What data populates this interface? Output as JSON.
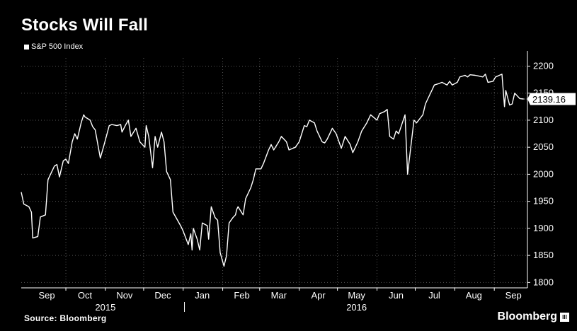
{
  "header": {
    "title": "Stocks Will Fall"
  },
  "footer": {
    "source": "Source: Bloomberg",
    "brand": "Bloomberg",
    "brand_mark": "III"
  },
  "chart_data": {
    "type": "line",
    "title": "Stocks Will Fall",
    "legend": {
      "placement": "top-left",
      "entries": [
        "S&P 500 Index"
      ]
    },
    "series": [
      {
        "name": "S&P 500 Index",
        "color": "#ffffff",
        "x": [
          "2015-08-26",
          "2015-08-28",
          "2015-09-01",
          "2015-09-03",
          "2015-09-04",
          "2015-09-08",
          "2015-09-10",
          "2015-09-14",
          "2015-09-16",
          "2015-09-17",
          "2015-09-21",
          "2015-09-23",
          "2015-09-25",
          "2015-09-28",
          "2015-09-30",
          "2015-10-02",
          "2015-10-05",
          "2015-10-07",
          "2015-10-09",
          "2015-10-12",
          "2015-10-14",
          "2015-10-15",
          "2015-10-19",
          "2015-10-21",
          "2015-10-23",
          "2015-10-27",
          "2015-10-30",
          "2015-11-03",
          "2015-11-05",
          "2015-11-09",
          "2015-11-12",
          "2015-11-13",
          "2015-11-16",
          "2015-11-18",
          "2015-11-20",
          "2015-11-24",
          "2015-11-27",
          "2015-12-01",
          "2015-12-02",
          "2015-12-04",
          "2015-12-07",
          "2015-12-09",
          "2015-12-11",
          "2015-12-14",
          "2015-12-16",
          "2015-12-18",
          "2015-12-21",
          "2015-12-23",
          "2015-12-29",
          "2015-12-31",
          "2016-01-04",
          "2016-01-06",
          "2016-01-07",
          "2016-01-08",
          "2016-01-11",
          "2016-01-13",
          "2016-01-15",
          "2016-01-19",
          "2016-01-20",
          "2016-01-22",
          "2016-01-25",
          "2016-01-27",
          "2016-01-29",
          "2016-02-01",
          "2016-02-03",
          "2016-02-05",
          "2016-02-08",
          "2016-02-10",
          "2016-02-11",
          "2016-02-12",
          "2016-02-16",
          "2016-02-18",
          "2016-02-22",
          "2016-02-24",
          "2016-02-26",
          "2016-03-01",
          "2016-03-03",
          "2016-03-07",
          "2016-03-09",
          "2016-03-11",
          "2016-03-15",
          "2016-03-17",
          "2016-03-21",
          "2016-03-23",
          "2016-03-28",
          "2016-03-31",
          "2016-04-04",
          "2016-04-06",
          "2016-04-08",
          "2016-04-12",
          "2016-04-14",
          "2016-04-18",
          "2016-04-20",
          "2016-04-22",
          "2016-04-26",
          "2016-04-29",
          "2016-05-03",
          "2016-05-06",
          "2016-05-10",
          "2016-05-12",
          "2016-05-16",
          "2016-05-19",
          "2016-05-23",
          "2016-05-26",
          "2016-05-31",
          "2016-06-02",
          "2016-06-06",
          "2016-06-08",
          "2016-06-10",
          "2016-06-13",
          "2016-06-15",
          "2016-06-17",
          "2016-06-22",
          "2016-06-24",
          "2016-06-27",
          "2016-06-29",
          "2016-07-01",
          "2016-07-06",
          "2016-07-08",
          "2016-07-11",
          "2016-07-13",
          "2016-07-15",
          "2016-07-19",
          "2016-07-21",
          "2016-07-25",
          "2016-07-27",
          "2016-07-29",
          "2016-08-02",
          "2016-08-04",
          "2016-08-08",
          "2016-08-10",
          "2016-08-12",
          "2016-08-16",
          "2016-08-18",
          "2016-08-22",
          "2016-08-24",
          "2016-08-26",
          "2016-08-30",
          "2016-09-01",
          "2016-09-06",
          "2016-09-08",
          "2016-09-09",
          "2016-09-12",
          "2016-09-14",
          "2016-09-16",
          "2016-09-20",
          "2016-09-23"
        ],
        "values": [
          1967,
          1945,
          1940,
          1930,
          1882,
          1885,
          1921,
          1925,
          1990,
          1995,
          2015,
          2018,
          1995,
          2025,
          2028,
          2020,
          2060,
          2075,
          2065,
          2095,
          2110,
          2106,
          2100,
          2088,
          2082,
          2030,
          2055,
          2090,
          2092,
          2090,
          2092,
          2078,
          2092,
          2100,
          2070,
          2085,
          2060,
          2050,
          2090,
          2070,
          2012,
          2070,
          2050,
          2078,
          2060,
          2005,
          1990,
          1930,
          1905,
          1895,
          1870,
          1890,
          1860,
          1900,
          1880,
          1860,
          1910,
          1905,
          1880,
          1940,
          1920,
          1915,
          1855,
          1830,
          1850,
          1910,
          1920,
          1925,
          1935,
          1940,
          1925,
          1955,
          1975,
          1990,
          2010,
          2010,
          2020,
          2045,
          2055,
          2045,
          2060,
          2070,
          2060,
          2045,
          2050,
          2060,
          2090,
          2088,
          2100,
          2095,
          2080,
          2060,
          2058,
          2065,
          2085,
          2075,
          2048,
          2070,
          2055,
          2040,
          2060,
          2080,
          2095,
          2110,
          2100,
          2112,
          2116,
          2120,
          2070,
          2065,
          2080,
          2075,
          2110,
          2000,
          2060,
          2100,
          2095,
          2110,
          2130,
          2145,
          2155,
          2165,
          2168,
          2170,
          2165,
          2172,
          2165,
          2170,
          2180,
          2183,
          2180,
          2184,
          2183,
          2182,
          2180,
          2185,
          2170,
          2172,
          2180,
          2185,
          2125,
          2155,
          2128,
          2130,
          2150,
          2140,
          2139.16
        ]
      }
    ],
    "last_value": 2139.16,
    "last_value_label": "2139.16",
    "y_axis": {
      "range": [
        1790,
        2215
      ],
      "ticks": [
        1800,
        1850,
        1900,
        1950,
        2000,
        2050,
        2100,
        2150,
        2200
      ],
      "side": "right"
    },
    "x_axis": {
      "range": [
        "2015-08-26",
        "2016-09-26"
      ],
      "month_labels": [
        {
          "label": "Sep",
          "center": "2015-09-15"
        },
        {
          "label": "Oct",
          "center": "2015-10-15"
        },
        {
          "label": "Nov",
          "center": "2015-11-15"
        },
        {
          "label": "Dec",
          "center": "2015-12-15"
        },
        {
          "label": "Jan",
          "center": "2016-01-15"
        },
        {
          "label": "Feb",
          "center": "2016-02-15"
        },
        {
          "label": "Mar",
          "center": "2016-03-15"
        },
        {
          "label": "Apr",
          "center": "2016-04-15"
        },
        {
          "label": "May",
          "center": "2016-05-15"
        },
        {
          "label": "Jun",
          "center": "2016-06-15"
        },
        {
          "label": "Jul",
          "center": "2016-07-15"
        },
        {
          "label": "Aug",
          "center": "2016-08-15"
        },
        {
          "label": "Sep",
          "center": "2016-09-15"
        }
      ],
      "month_gridlines": [
        "2015-09-30",
        "2015-10-31",
        "2015-11-30",
        "2015-12-31",
        "2016-01-31",
        "2016-02-29",
        "2016-03-31",
        "2016-04-30",
        "2016-05-31",
        "2016-06-30",
        "2016-07-31",
        "2016-08-31"
      ],
      "year_labels": [
        {
          "label": "2015",
          "center": "2015-10-31"
        },
        {
          "label": "2016",
          "center": "2016-05-15"
        }
      ],
      "year_divider": "2016-01-01"
    },
    "grid": true,
    "colors": {
      "background": "#000000",
      "line": "#ffffff",
      "grid": "#555555"
    }
  }
}
